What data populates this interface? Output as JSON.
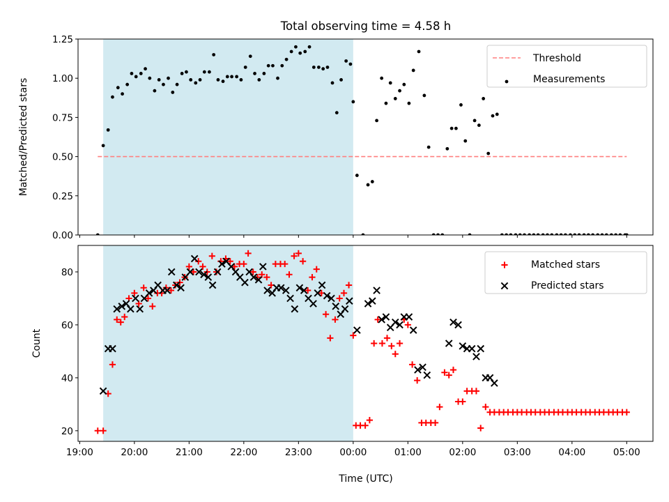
{
  "title": "Total observing time = 4.58 h",
  "colors": {
    "shade": "#add8e6",
    "threshold": "#ff7f7f",
    "measurements": "#000000",
    "matched": "#ff0000",
    "predicted": "#000000"
  },
  "x_axis": {
    "label": "Time (UTC)",
    "ticks": [
      "19:00",
      "20:00",
      "21:00",
      "22:00",
      "23:00",
      "00:00",
      "01:00",
      "02:00",
      "03:00",
      "04:00",
      "05:00"
    ],
    "tick_hours": [
      19,
      20,
      21,
      22,
      23,
      24,
      25,
      26,
      27,
      28,
      29
    ],
    "range": [
      18.97,
      29.48
    ]
  },
  "chart_data": [
    {
      "type": "scatter",
      "ylabel": "Matched/Predicted stars",
      "ylim": [
        0,
        1.25
      ],
      "yticks": [
        0,
        0.25,
        0.5,
        0.75,
        1.0,
        1.25
      ],
      "ytick_labels": [
        "0.00",
        "0.25",
        "0.50",
        "0.75",
        "1.00",
        "1.25"
      ],
      "shaded_interval": [
        19.43,
        24.0
      ],
      "legend_position": "top-right",
      "threshold": {
        "name": "Threshold",
        "value": 0.5,
        "x_range": [
          19.33,
          29.0
        ]
      },
      "series": [
        {
          "name": "Measurements",
          "marker": "dot",
          "x": [
            19.33,
            19.43,
            19.52,
            19.6,
            19.7,
            19.78,
            19.87,
            19.95,
            20.03,
            20.12,
            20.2,
            20.28,
            20.37,
            20.45,
            20.53,
            20.62,
            20.7,
            20.78,
            20.87,
            20.95,
            21.03,
            21.12,
            21.2,
            21.28,
            21.37,
            21.45,
            21.53,
            21.62,
            21.7,
            21.78,
            21.87,
            21.95,
            22.03,
            22.12,
            22.2,
            22.28,
            22.37,
            22.45,
            22.53,
            22.62,
            22.7,
            22.78,
            22.87,
            22.95,
            23.03,
            23.12,
            23.2,
            23.28,
            23.37,
            23.45,
            23.53,
            23.62,
            23.7,
            23.78,
            23.87,
            23.95,
            24.0,
            24.07,
            24.18,
            24.27,
            24.35,
            24.43,
            24.52,
            24.6,
            24.68,
            24.77,
            24.85,
            24.93,
            25.02,
            25.1,
            25.2,
            25.3,
            25.38,
            25.47,
            25.55,
            25.63,
            25.72,
            25.8,
            25.88,
            25.97,
            26.05,
            26.13,
            26.22,
            26.3,
            26.38,
            26.47,
            26.55,
            26.63,
            26.72,
            26.8,
            26.88,
            26.97,
            27.05,
            27.13,
            27.22,
            27.3,
            27.38,
            27.47,
            27.55,
            27.63,
            27.72,
            27.8,
            27.88,
            27.97,
            28.05,
            28.13,
            28.22,
            28.3,
            28.38,
            28.47,
            28.55,
            28.63,
            28.72,
            28.8,
            28.88,
            28.97,
            29.0
          ],
          "y": [
            0.0,
            0.57,
            0.67,
            0.88,
            0.94,
            0.9,
            0.96,
            1.03,
            1.01,
            1.03,
            1.06,
            1.0,
            0.92,
            0.99,
            0.96,
            1.0,
            0.91,
            0.96,
            1.03,
            1.04,
            0.99,
            0.97,
            0.99,
            1.04,
            1.04,
            1.15,
            0.99,
            0.98,
            1.01,
            1.01,
            1.01,
            0.99,
            1.07,
            1.14,
            1.03,
            0.99,
            1.03,
            1.08,
            1.08,
            1.0,
            1.08,
            1.12,
            1.17,
            1.2,
            1.16,
            1.17,
            1.2,
            1.07,
            1.07,
            1.06,
            1.07,
            0.97,
            0.78,
            0.99,
            1.11,
            1.09,
            0.85,
            0.38,
            0.0,
            0.32,
            0.34,
            0.73,
            1.0,
            0.84,
            0.97,
            0.87,
            0.92,
            0.96,
            0.84,
            1.05,
            1.17,
            0.89,
            0.56,
            0.0,
            0.0,
            0.0,
            0.55,
            0.68,
            0.68,
            0.83,
            0.6,
            0.0,
            0.73,
            0.7,
            0.87,
            0.52,
            0.76,
            0.77,
            0.0,
            0.0,
            0.0,
            0.0,
            0.0,
            0.0,
            0.0,
            0.0,
            0.0,
            0.0,
            0.0,
            0.0,
            0.0,
            0.0,
            0.0,
            0.0,
            0.0,
            0.0,
            0.0,
            0.0,
            0.0,
            0.0,
            0.0,
            0.0,
            0.0,
            0.0,
            0.0,
            0.0,
            0.0
          ]
        }
      ]
    },
    {
      "type": "scatter",
      "ylabel": "Count",
      "ylim": [
        16,
        90
      ],
      "yticks": [
        20,
        40,
        60,
        80
      ],
      "ytick_labels": [
        "20",
        "40",
        "60",
        "80"
      ],
      "shaded_interval": [
        19.43,
        24.0
      ],
      "legend_position": "top-right",
      "series": [
        {
          "name": "Matched stars",
          "marker": "plus",
          "x": [
            19.33,
            19.43,
            19.52,
            19.6,
            19.68,
            19.75,
            19.82,
            19.9,
            20.0,
            20.08,
            20.17,
            20.25,
            20.33,
            20.42,
            20.5,
            20.58,
            20.67,
            20.75,
            20.83,
            20.92,
            21.0,
            21.08,
            21.17,
            21.25,
            21.33,
            21.42,
            21.5,
            21.58,
            21.67,
            21.75,
            21.83,
            21.92,
            22.0,
            22.08,
            22.17,
            22.25,
            22.33,
            22.42,
            22.5,
            22.58,
            22.67,
            22.75,
            22.83,
            22.92,
            23.0,
            23.08,
            23.17,
            23.25,
            23.33,
            23.42,
            23.5,
            23.58,
            23.67,
            23.75,
            23.83,
            23.92,
            24.0,
            24.05,
            24.13,
            24.22,
            24.3,
            24.38,
            24.45,
            24.53,
            24.62,
            24.7,
            24.77,
            24.85,
            24.93,
            25.0,
            25.08,
            25.17,
            25.25,
            25.33,
            25.42,
            25.5,
            25.58,
            25.67,
            25.75,
            25.83,
            25.92,
            26.0,
            26.08,
            26.17,
            26.25,
            26.33,
            26.42,
            26.5,
            26.58,
            26.67,
            26.75,
            26.83,
            26.92,
            27.0,
            27.08,
            27.17,
            27.25,
            27.33,
            27.42,
            27.5,
            27.58,
            27.67,
            27.75,
            27.83,
            27.92,
            28.0,
            28.08,
            28.17,
            28.25,
            28.33,
            28.42,
            28.5,
            28.58,
            28.67,
            28.75,
            28.83,
            28.92,
            29.0
          ],
          "y": [
            20,
            20,
            34,
            45,
            62,
            61,
            63,
            70,
            72,
            68,
            74,
            70,
            67,
            72,
            72,
            74,
            73,
            75,
            76,
            78,
            82,
            80,
            84,
            82,
            80,
            86,
            80,
            84,
            85,
            84,
            82,
            83,
            83,
            87,
            80,
            78,
            79,
            78,
            75,
            83,
            83,
            83,
            79,
            86,
            87,
            84,
            73,
            78,
            81,
            72,
            64,
            55,
            62,
            70,
            72,
            75,
            56,
            22,
            22,
            22,
            24,
            53,
            62,
            53,
            55,
            52,
            49,
            53,
            62,
            60,
            45,
            39,
            23,
            23,
            23,
            23,
            29,
            42,
            41,
            43,
            31,
            31,
            35,
            35,
            35,
            21,
            29,
            27,
            27,
            27,
            27,
            27,
            27,
            27,
            27,
            27,
            27,
            27,
            27,
            27,
            27,
            27,
            27,
            27,
            27,
            27,
            27,
            27,
            27,
            27,
            27,
            27,
            27,
            27,
            27,
            27,
            27,
            27
          ]
        },
        {
          "name": "Predicted stars",
          "marker": "x",
          "x": [
            19.43,
            19.52,
            19.6,
            19.68,
            19.77,
            19.85,
            19.93,
            20.02,
            20.1,
            20.18,
            20.27,
            20.35,
            20.43,
            20.52,
            20.6,
            20.68,
            20.77,
            20.85,
            20.93,
            21.02,
            21.1,
            21.18,
            21.27,
            21.35,
            21.43,
            21.52,
            21.6,
            21.68,
            21.77,
            21.85,
            21.93,
            22.02,
            22.1,
            22.18,
            22.27,
            22.35,
            22.43,
            22.52,
            22.6,
            22.68,
            22.77,
            22.85,
            22.93,
            23.02,
            23.1,
            23.18,
            23.27,
            23.35,
            23.43,
            23.52,
            23.6,
            23.68,
            23.77,
            23.85,
            23.93,
            24.07,
            24.27,
            24.35,
            24.43,
            24.52,
            24.6,
            24.68,
            24.77,
            24.85,
            24.93,
            25.02,
            25.1,
            25.18,
            25.27,
            25.35,
            25.75,
            25.83,
            25.92,
            26.0,
            26.08,
            26.17,
            26.25,
            26.33,
            26.42,
            26.5,
            26.58
          ],
          "y": [
            35,
            51,
            51,
            66,
            67,
            68,
            66,
            70,
            66,
            70,
            72,
            73,
            75,
            73,
            73,
            80,
            75,
            74,
            78,
            80,
            85,
            80,
            79,
            78,
            75,
            80,
            83,
            84,
            82,
            80,
            78,
            76,
            80,
            78,
            77,
            82,
            73,
            72,
            74,
            74,
            73,
            70,
            66,
            74,
            73,
            70,
            68,
            72,
            75,
            71,
            70,
            67,
            64,
            66,
            69,
            58,
            68,
            69,
            73,
            62,
            63,
            59,
            61,
            60,
            63,
            63,
            58,
            43,
            44,
            41,
            53,
            61,
            60,
            52,
            51,
            51,
            48,
            51,
            40,
            40,
            38
          ]
        }
      ]
    }
  ]
}
